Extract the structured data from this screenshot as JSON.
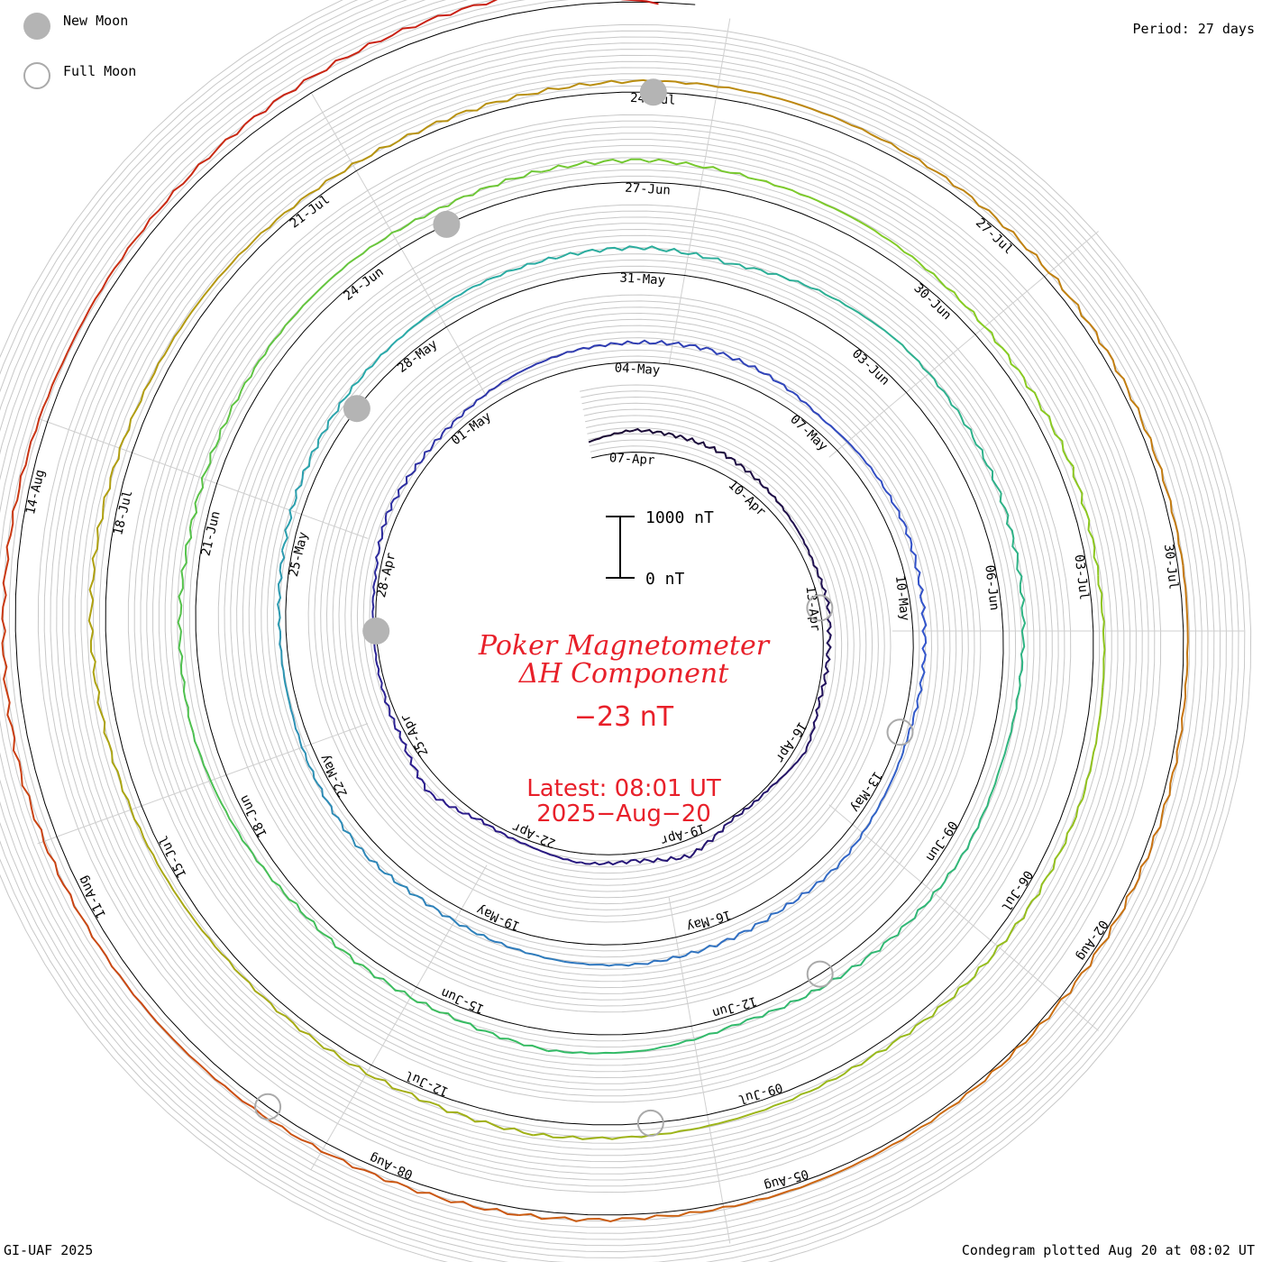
{
  "header": {
    "period": "Period: 27 days"
  },
  "footer": {
    "credit": "GI-UAF 2025",
    "plotted": "Condegram plotted Aug 20 at 08:02 UT"
  },
  "legend": {
    "new_moon": "New Moon",
    "full_moon": "Full Moon",
    "new_moon_color": "#b4b4b4",
    "full_moon_color": "#aaaaaa"
  },
  "center": {
    "title_line1": "Poker Magnetometer",
    "title_line2": "ΔH Component",
    "value": "−23 nT",
    "latest_line1": "Latest: 08:01 UT",
    "latest_line2": "2025−Aug−20",
    "scale_top": "1000 nT",
    "scale_bottom": "0 nT",
    "text_color": "#e8202a"
  },
  "chart_data": {
    "type": "line",
    "projection": "spiral (condegram)",
    "period_days": 27,
    "start_date": "2025-04-06",
    "end": "2025-08-20 08:01 UT",
    "unit": "nT",
    "scale_nT": [
      0,
      1000
    ],
    "grid": true,
    "color_ramp": [
      "#1a0a33",
      "#2a1a8a",
      "#3355cc",
      "#2aaaaa",
      "#33bb66",
      "#88cc22",
      "#b0a010",
      "#cc6a10",
      "#c81414"
    ],
    "day_labels": [
      "07-Apr",
      "10-Apr",
      "13-Apr",
      "16-Apr",
      "19-Apr",
      "22-Apr",
      "25-Apr",
      "28-Apr",
      "01-May",
      "04-May",
      "07-May",
      "10-May",
      "13-May",
      "16-May",
      "19-May",
      "22-May",
      "25-May",
      "28-May",
      "31-May",
      "03-Jun",
      "06-Jun",
      "09-Jun",
      "12-Jun",
      "15-Jun",
      "18-Jun",
      "21-Jun",
      "24-Jun",
      "27-Jun",
      "30-Jun",
      "03-Jul",
      "06-Jul",
      "09-Jul",
      "12-Jul",
      "15-Jul",
      "18-Jul",
      "21-Jul",
      "24-Jul",
      "27-Jul",
      "30-Jul",
      "02-Aug",
      "05-Aug",
      "08-Aug",
      "11-Aug",
      "14-Aug"
    ],
    "new_moons": [
      "2025-04-27",
      "2025-05-27",
      "2025-06-25",
      "2025-07-24"
    ],
    "full_moons": [
      "2025-04-13",
      "2025-05-12",
      "2025-06-11",
      "2025-07-10",
      "2025-08-09"
    ],
    "series_h_nT": [
      {
        "date": "2025-04-06",
        "h": 260
      },
      {
        "date": "2025-04-07",
        "h": 360
      },
      {
        "date": "2025-04-08",
        "h": 330
      },
      {
        "date": "2025-04-09",
        "h": 300
      },
      {
        "date": "2025-04-10",
        "h": 220
      },
      {
        "date": "2025-04-11",
        "h": 160
      },
      {
        "date": "2025-04-12",
        "h": 120
      },
      {
        "date": "2025-04-13",
        "h": 140
      },
      {
        "date": "2025-04-14",
        "h": 80
      },
      {
        "date": "2025-04-15",
        "h": 60
      },
      {
        "date": "2025-04-16",
        "h": 170
      },
      {
        "date": "2025-04-17",
        "h": 50
      },
      {
        "date": "2025-04-18",
        "h": 40
      },
      {
        "date": "2025-04-19",
        "h": 260
      },
      {
        "date": "2025-04-20",
        "h": 120
      },
      {
        "date": "2025-04-21",
        "h": 160
      },
      {
        "date": "2025-04-22",
        "h": 80
      },
      {
        "date": "2025-04-23",
        "h": 60
      },
      {
        "date": "2025-04-24",
        "h": 260
      },
      {
        "date": "2025-04-25",
        "h": 100
      },
      {
        "date": "2025-04-26",
        "h": 60
      },
      {
        "date": "2025-04-27",
        "h": 40
      },
      {
        "date": "2025-04-28",
        "h": 60
      },
      {
        "date": "2025-04-29",
        "h": 160
      },
      {
        "date": "2025-04-30",
        "h": 120
      },
      {
        "date": "2025-05-01",
        "h": 160
      },
      {
        "date": "2025-05-02",
        "h": 240
      },
      {
        "date": "2025-05-03",
        "h": 300
      },
      {
        "date": "2025-05-04",
        "h": 320
      },
      {
        "date": "2025-05-05",
        "h": 360
      },
      {
        "date": "2025-05-06",
        "h": 300
      },
      {
        "date": "2025-05-07",
        "h": 200
      },
      {
        "date": "2025-05-08",
        "h": 240
      },
      {
        "date": "2025-05-09",
        "h": 260
      },
      {
        "date": "2025-05-10",
        "h": 200
      },
      {
        "date": "2025-05-11",
        "h": 180
      },
      {
        "date": "2025-05-12",
        "h": 140
      },
      {
        "date": "2025-05-13",
        "h": 180
      },
      {
        "date": "2025-05-14",
        "h": 260
      },
      {
        "date": "2025-05-15",
        "h": 240
      },
      {
        "date": "2025-05-16",
        "h": 300
      },
      {
        "date": "2025-05-17",
        "h": 340
      },
      {
        "date": "2025-05-18",
        "h": 320
      },
      {
        "date": "2025-05-19",
        "h": 260
      },
      {
        "date": "2025-05-20",
        "h": 200
      },
      {
        "date": "2025-05-21",
        "h": 240
      },
      {
        "date": "2025-05-22",
        "h": 180
      },
      {
        "date": "2025-05-23",
        "h": 120
      },
      {
        "date": "2025-05-24",
        "h": 100
      },
      {
        "date": "2025-05-25",
        "h": 140
      },
      {
        "date": "2025-05-26",
        "h": 200
      },
      {
        "date": "2025-05-27",
        "h": 260
      },
      {
        "date": "2025-05-28",
        "h": 300
      },
      {
        "date": "2025-05-29",
        "h": 360
      },
      {
        "date": "2025-05-30",
        "h": 380
      },
      {
        "date": "2025-05-31",
        "h": 400
      },
      {
        "date": "2025-06-01",
        "h": 330
      },
      {
        "date": "2025-06-02",
        "h": 440
      },
      {
        "date": "2025-06-03",
        "h": 500
      },
      {
        "date": "2025-06-04",
        "h": 460
      },
      {
        "date": "2025-06-05",
        "h": 420
      },
      {
        "date": "2025-06-06",
        "h": 360
      },
      {
        "date": "2025-06-07",
        "h": 300
      },
      {
        "date": "2025-06-08",
        "h": 260
      },
      {
        "date": "2025-06-09",
        "h": 300
      },
      {
        "date": "2025-06-10",
        "h": 260
      },
      {
        "date": "2025-06-11",
        "h": 200
      },
      {
        "date": "2025-06-12",
        "h": 160
      },
      {
        "date": "2025-06-13",
        "h": 280
      },
      {
        "date": "2025-06-14",
        "h": 320
      },
      {
        "date": "2025-06-15",
        "h": 200
      },
      {
        "date": "2025-06-16",
        "h": 180
      },
      {
        "date": "2025-06-17",
        "h": 160
      },
      {
        "date": "2025-06-18",
        "h": 240
      },
      {
        "date": "2025-06-19",
        "h": 300
      },
      {
        "date": "2025-06-20",
        "h": 260
      },
      {
        "date": "2025-06-21",
        "h": 220
      },
      {
        "date": "2025-06-22",
        "h": 240
      },
      {
        "date": "2025-06-23",
        "h": 280
      },
      {
        "date": "2025-06-24",
        "h": 300
      },
      {
        "date": "2025-06-25",
        "h": 280
      },
      {
        "date": "2025-06-26",
        "h": 340
      },
      {
        "date": "2025-06-27",
        "h": 360
      },
      {
        "date": "2025-06-28",
        "h": 300
      },
      {
        "date": "2025-06-29",
        "h": 280
      },
      {
        "date": "2025-06-30",
        "h": 220
      },
      {
        "date": "2025-07-01",
        "h": 180
      },
      {
        "date": "2025-07-02",
        "h": 200
      },
      {
        "date": "2025-07-03",
        "h": 160
      },
      {
        "date": "2025-07-04",
        "h": 180
      },
      {
        "date": "2025-07-05",
        "h": 220
      },
      {
        "date": "2025-07-06",
        "h": 200
      },
      {
        "date": "2025-07-07",
        "h": 160
      },
      {
        "date": "2025-07-08",
        "h": 120
      },
      {
        "date": "2025-07-09",
        "h": 160
      },
      {
        "date": "2025-07-10",
        "h": 200
      },
      {
        "date": "2025-07-11",
        "h": 240
      },
      {
        "date": "2025-07-12",
        "h": 160
      },
      {
        "date": "2025-07-13",
        "h": 140
      },
      {
        "date": "2025-07-14",
        "h": 120
      },
      {
        "date": "2025-07-15",
        "h": 160
      },
      {
        "date": "2025-07-16",
        "h": 200
      },
      {
        "date": "2025-07-17",
        "h": 240
      },
      {
        "date": "2025-07-18",
        "h": 220
      },
      {
        "date": "2025-07-19",
        "h": 180
      },
      {
        "date": "2025-07-20",
        "h": 160
      },
      {
        "date": "2025-07-21",
        "h": 120
      },
      {
        "date": "2025-07-22",
        "h": 100
      },
      {
        "date": "2025-07-23",
        "h": 140
      },
      {
        "date": "2025-07-24",
        "h": 180
      },
      {
        "date": "2025-07-25",
        "h": 200
      },
      {
        "date": "2025-07-26",
        "h": 160
      },
      {
        "date": "2025-07-27",
        "h": 120
      },
      {
        "date": "2025-07-28",
        "h": 100
      },
      {
        "date": "2025-07-29",
        "h": 80
      },
      {
        "date": "2025-07-30",
        "h": 80
      },
      {
        "date": "2025-07-31",
        "h": 60
      },
      {
        "date": "2025-08-01",
        "h": 80
      },
      {
        "date": "2025-08-02",
        "h": 60
      },
      {
        "date": "2025-08-03",
        "h": 40
      },
      {
        "date": "2025-08-04",
        "h": 60
      },
      {
        "date": "2025-08-05",
        "h": 80
      },
      {
        "date": "2025-08-06",
        "h": 60
      },
      {
        "date": "2025-08-07",
        "h": 100
      },
      {
        "date": "2025-08-08",
        "h": 120
      },
      {
        "date": "2025-08-09",
        "h": 160
      },
      {
        "date": "2025-08-10",
        "h": 180
      },
      {
        "date": "2025-08-11",
        "h": 200
      },
      {
        "date": "2025-08-12",
        "h": 240
      },
      {
        "date": "2025-08-13",
        "h": 200
      },
      {
        "date": "2025-08-14",
        "h": 160
      },
      {
        "date": "2025-08-15",
        "h": 120
      },
      {
        "date": "2025-08-16",
        "h": 140
      },
      {
        "date": "2025-08-17",
        "h": 180
      },
      {
        "date": "2025-08-18",
        "h": 240
      },
      {
        "date": "2025-08-19",
        "h": 280
      },
      {
        "date": "2025-08-20",
        "h": -23
      }
    ]
  }
}
